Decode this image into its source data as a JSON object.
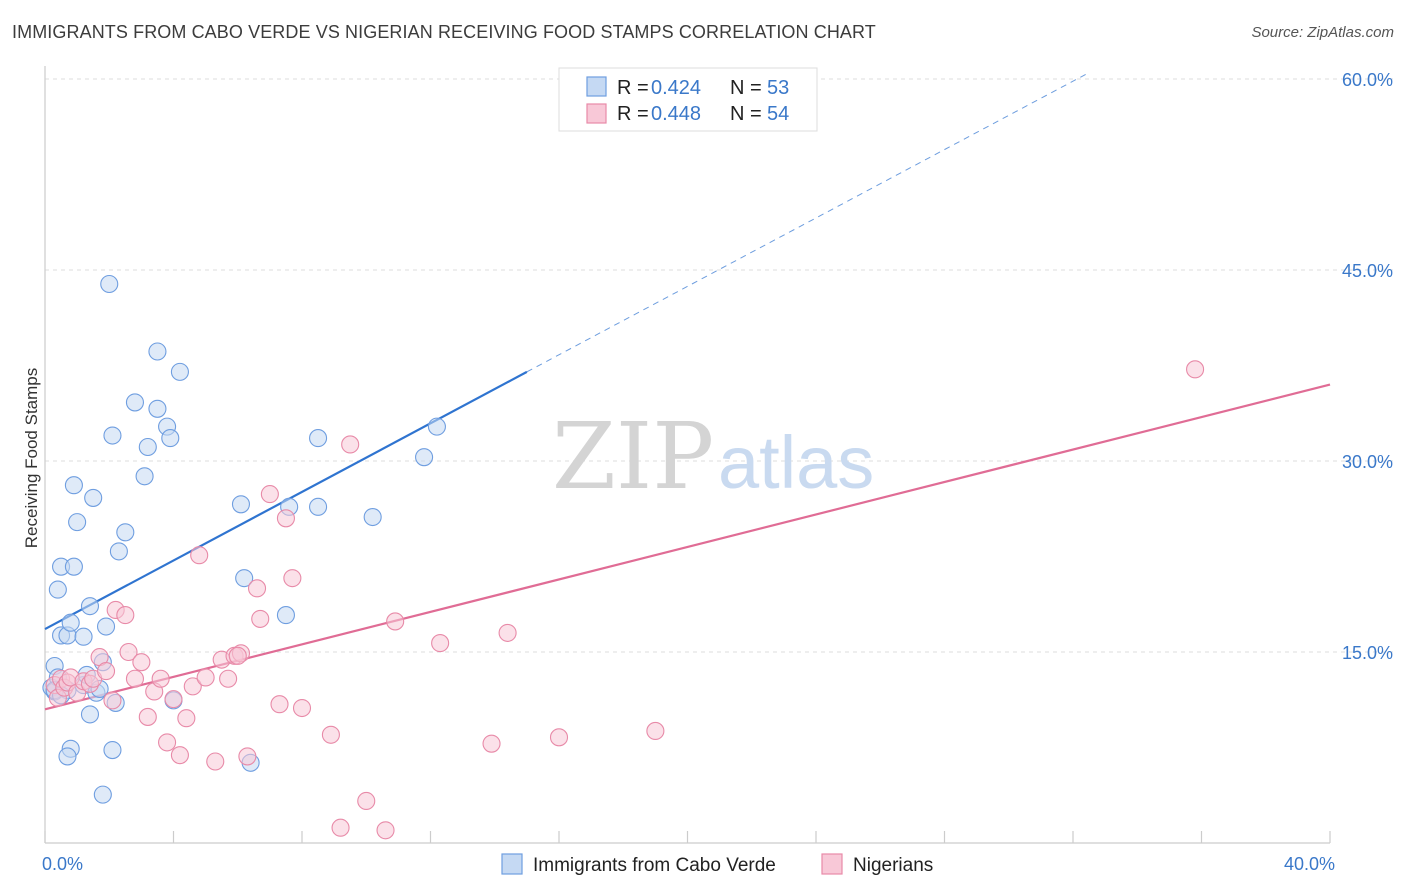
{
  "title": "IMMIGRANTS FROM CABO VERDE VS NIGERIAN RECEIVING FOOD STAMPS CORRELATION CHART",
  "source": "Source: ZipAtlas.com",
  "watermark": {
    "zip": "ZIP",
    "atlas": "atlas"
  },
  "legend": {
    "r_label": "R =",
    "n_label": "N =",
    "rows": [
      {
        "series": "Immigrants from Cabo Verde",
        "r": "0.424",
        "n": "53"
      },
      {
        "series": "Nigerians",
        "r": "0.448",
        "n": "54"
      }
    ]
  },
  "chart_data": {
    "type": "scatter",
    "title": "IMMIGRANTS FROM CABO VERDE VS NIGERIAN RECEIVING FOOD STAMPS CORRELATION CHART",
    "xlabel": "",
    "ylabel": "Receiving Food Stamps",
    "xlim": [
      0,
      40
    ],
    "ylim": [
      0,
      60
    ],
    "x_ticks": [
      0,
      4,
      8,
      12,
      16,
      20,
      24,
      28,
      32,
      36,
      40
    ],
    "x_tick_labels": [
      {
        "value": 0,
        "label": "0.0%"
      },
      {
        "value": 40,
        "label": "40.0%"
      }
    ],
    "y_ticks": [
      15,
      30,
      45,
      60
    ],
    "y_tick_labels": [
      "15.0%",
      "30.0%",
      "45.0%",
      "60.0%"
    ],
    "grid": true,
    "legend_position": "bottom-center",
    "series": [
      {
        "name": "Immigrants from Cabo Verde",
        "color": "#6f9ee0",
        "fill": "#c5d9f3",
        "line_color": "#2f74d0",
        "trend": {
          "x": [
            0,
            15
          ],
          "y": [
            16.8,
            37.0
          ]
        },
        "trend_extension": {
          "x": [
            15,
            32.5
          ],
          "y": [
            37.0,
            60.5
          ]
        },
        "points": [
          [
            0.2,
            12.2
          ],
          [
            0.3,
            11.9
          ],
          [
            0.3,
            13.9
          ],
          [
            0.4,
            13.0
          ],
          [
            0.5,
            16.3
          ],
          [
            0.4,
            19.9
          ],
          [
            0.5,
            21.7
          ],
          [
            0.7,
            12.0
          ],
          [
            0.7,
            16.3
          ],
          [
            0.8,
            17.3
          ],
          [
            0.9,
            21.7
          ],
          [
            0.9,
            28.1
          ],
          [
            1.0,
            25.2
          ],
          [
            1.2,
            12.4
          ],
          [
            1.2,
            16.2
          ],
          [
            1.3,
            13.2
          ],
          [
            1.4,
            18.6
          ],
          [
            1.5,
            27.1
          ],
          [
            1.6,
            11.8
          ],
          [
            1.7,
            12.1
          ],
          [
            1.8,
            14.2
          ],
          [
            1.9,
            17.0
          ],
          [
            2.1,
            32.0
          ],
          [
            2.2,
            11.0
          ],
          [
            2.3,
            22.9
          ],
          [
            2.5,
            24.4
          ],
          [
            2.8,
            34.6
          ],
          [
            3.1,
            28.8
          ],
          [
            3.2,
            31.1
          ],
          [
            3.5,
            38.6
          ],
          [
            3.5,
            34.1
          ],
          [
            3.8,
            32.7
          ],
          [
            3.9,
            31.8
          ],
          [
            4.2,
            37.0
          ],
          [
            2.0,
            43.9
          ],
          [
            0.8,
            7.4
          ],
          [
            0.7,
            6.8
          ],
          [
            1.4,
            10.1
          ],
          [
            2.1,
            7.3
          ],
          [
            1.8,
            3.8
          ],
          [
            4.0,
            11.2
          ],
          [
            6.1,
            26.6
          ],
          [
            6.2,
            20.8
          ],
          [
            6.4,
            6.3
          ],
          [
            7.6,
            26.4
          ],
          [
            7.5,
            17.9
          ],
          [
            8.5,
            31.8
          ],
          [
            8.5,
            26.4
          ],
          [
            10.2,
            25.6
          ],
          [
            11.8,
            30.3
          ],
          [
            12.2,
            32.7
          ],
          [
            0.3,
            12.0
          ],
          [
            0.5,
            11.6
          ]
        ]
      },
      {
        "name": "Nigerians",
        "color": "#e88aa8",
        "fill": "#f8c8d7",
        "line_color": "#e06c95",
        "trend": {
          "x": [
            0,
            40
          ],
          "y": [
            10.5,
            36.0
          ]
        },
        "points": [
          [
            0.3,
            12.4
          ],
          [
            0.4,
            11.4
          ],
          [
            0.5,
            12.9
          ],
          [
            0.6,
            12.2
          ],
          [
            0.7,
            12.6
          ],
          [
            0.8,
            13.0
          ],
          [
            1.0,
            11.8
          ],
          [
            1.2,
            12.7
          ],
          [
            1.4,
            12.5
          ],
          [
            1.5,
            12.9
          ],
          [
            1.7,
            14.6
          ],
          [
            1.9,
            13.5
          ],
          [
            2.1,
            11.2
          ],
          [
            2.2,
            18.3
          ],
          [
            2.5,
            17.9
          ],
          [
            2.6,
            15.0
          ],
          [
            2.8,
            12.9
          ],
          [
            3.0,
            14.2
          ],
          [
            3.2,
            9.9
          ],
          [
            3.4,
            11.9
          ],
          [
            3.6,
            12.9
          ],
          [
            3.8,
            7.9
          ],
          [
            4.0,
            11.3
          ],
          [
            4.2,
            6.9
          ],
          [
            4.4,
            9.8
          ],
          [
            4.6,
            12.3
          ],
          [
            4.8,
            22.6
          ],
          [
            5.0,
            13.0
          ],
          [
            5.3,
            6.4
          ],
          [
            5.5,
            14.4
          ],
          [
            5.7,
            12.9
          ],
          [
            5.9,
            14.7
          ],
          [
            6.1,
            14.9
          ],
          [
            6.3,
            6.8
          ],
          [
            6.6,
            20.0
          ],
          [
            6.7,
            17.6
          ],
          [
            7.0,
            27.4
          ],
          [
            7.3,
            10.9
          ],
          [
            7.5,
            25.5
          ],
          [
            7.7,
            20.8
          ],
          [
            8.0,
            10.6
          ],
          [
            8.9,
            8.5
          ],
          [
            9.2,
            1.2
          ],
          [
            9.5,
            31.3
          ],
          [
            10.0,
            3.3
          ],
          [
            10.6,
            1.0
          ],
          [
            10.9,
            17.4
          ],
          [
            12.3,
            15.7
          ],
          [
            13.9,
            7.8
          ],
          [
            14.4,
            16.5
          ],
          [
            16.0,
            8.3
          ],
          [
            19.0,
            8.8
          ],
          [
            35.8,
            37.2
          ],
          [
            6.0,
            14.7
          ]
        ]
      }
    ]
  }
}
